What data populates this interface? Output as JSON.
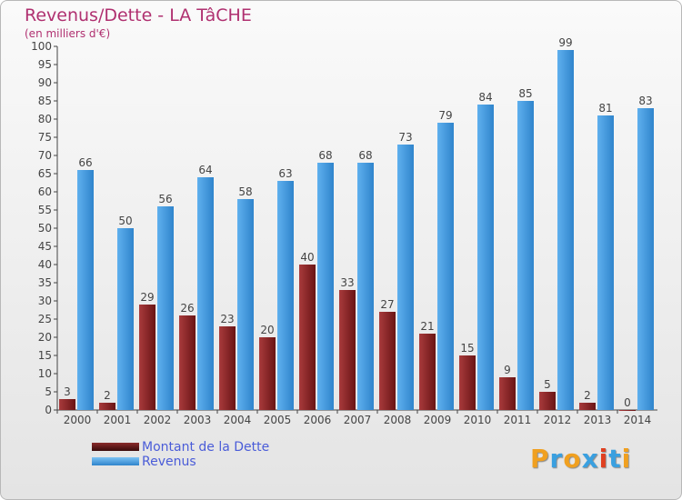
{
  "title": "Revenus/Dette - LA TâCHE",
  "subtitle": "(en milliers d'€)",
  "colors": {
    "debt": "#7a1f22",
    "debt_light": "#a83a3c",
    "revenue": "#3d94dc",
    "revenue_light": "#5fb0ee",
    "title": "#b03070",
    "legend_text": "#4a5cd8"
  },
  "legend": [
    {
      "label": "Montant de la Dette",
      "color": "#6a1515"
    },
    {
      "label": "Revenus",
      "color": "#3d94dc"
    }
  ],
  "logo": {
    "text": "Proxiti",
    "letter_colors": [
      "#f0a020",
      "#3aa0e0",
      "#f0a020",
      "#3aa0e0",
      "#e04020",
      "#3aa0e0",
      "#f0a020"
    ]
  },
  "chart_data": {
    "type": "bar",
    "title": "Revenus/Dette - LA TâCHE",
    "subtitle": "(en milliers d'€)",
    "categories": [
      "2000",
      "2001",
      "2002",
      "2003",
      "2004",
      "2005",
      "2006",
      "2007",
      "2008",
      "2009",
      "2010",
      "2011",
      "2012",
      "2013",
      "2014"
    ],
    "series": [
      {
        "name": "Montant de la Dette",
        "values": [
          3,
          2,
          29,
          26,
          23,
          20,
          40,
          33,
          27,
          21,
          15,
          9,
          5,
          2,
          0
        ]
      },
      {
        "name": "Revenus",
        "values": [
          66,
          50,
          56,
          64,
          58,
          63,
          68,
          68,
          73,
          79,
          84,
          85,
          99,
          81,
          83
        ]
      }
    ],
    "ylim": [
      0,
      100
    ],
    "ytick_step": 5,
    "grid": false,
    "legend_position": "bottom-left"
  }
}
